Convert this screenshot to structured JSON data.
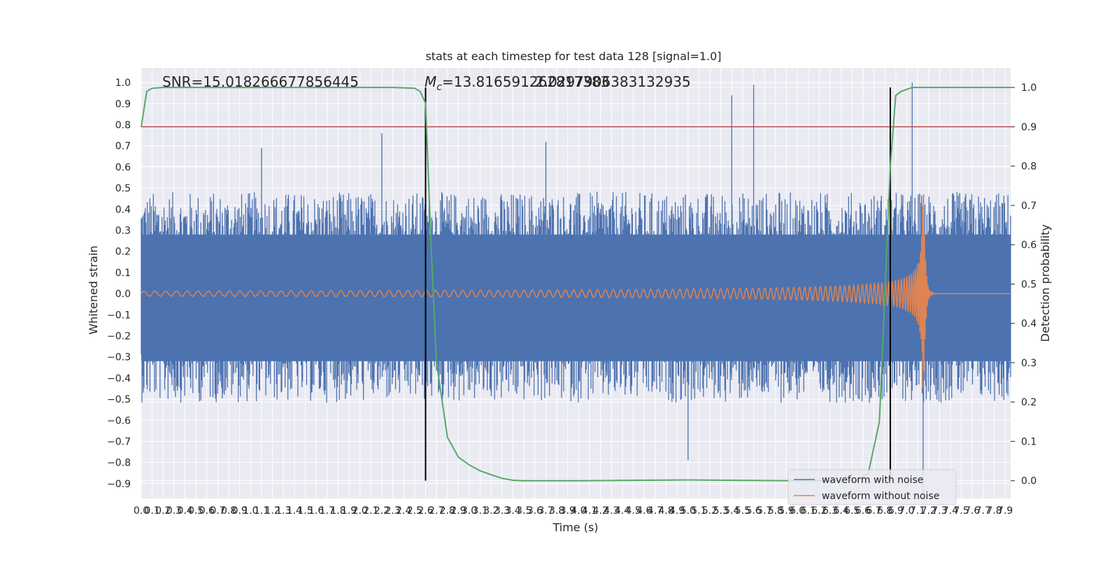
{
  "chart_data": {
    "type": "line",
    "title": "stats at each timestep for test data 128 [signal=1.0]",
    "xlabel": "Time (s)",
    "ylabel": "Whitened strain",
    "y2label": "Detection probability",
    "xlim": [
      0.0,
      7.95
    ],
    "ylim": [
      -0.97,
      1.07
    ],
    "y2lim": [
      -0.045,
      1.05
    ],
    "x_ticks": [
      0.0,
      0.1,
      0.2,
      0.3,
      0.4,
      0.5,
      0.6,
      0.7,
      0.8,
      0.9,
      1.0,
      1.1,
      1.2,
      1.3,
      1.4,
      1.5,
      1.6,
      1.7,
      1.8,
      1.9,
      2.0,
      2.1,
      2.2,
      2.3,
      2.4,
      2.5,
      2.6,
      2.7,
      2.8,
      2.9,
      3.0,
      3.1,
      3.2,
      3.3,
      3.4,
      3.5,
      3.6,
      3.7,
      3.8,
      3.9,
      4.0,
      4.1,
      4.2,
      4.3,
      4.4,
      4.5,
      4.6,
      4.7,
      4.8,
      4.9,
      5.0,
      5.1,
      5.2,
      5.3,
      5.4,
      5.5,
      5.6,
      5.7,
      5.8,
      5.9,
      6.0,
      6.1,
      6.2,
      6.3,
      6.4,
      6.5,
      6.6,
      6.7,
      6.8,
      6.9,
      7.0,
      7.1,
      7.2,
      7.3,
      7.4,
      7.5,
      7.6,
      7.7,
      7.8,
      7.9
    ],
    "y_ticks": [
      "1.0",
      "0.9",
      "0.8",
      "0.7",
      "0.6",
      "0.5",
      "0.4",
      "0.3",
      "0.2",
      "0.1",
      "0.0",
      "−0.1",
      "−0.2",
      "−0.3",
      "−0.4",
      "−0.5",
      "−0.6",
      "−0.7",
      "−0.8",
      "−0.9"
    ],
    "y2_ticks": [
      "1.0",
      "0.9",
      "0.8",
      "0.7",
      "0.6",
      "0.5",
      "0.4",
      "0.3",
      "0.2",
      "0.1",
      "0.0"
    ],
    "annotations": {
      "snr": "SNR=15.018266677856445",
      "mc_symbol": "M",
      "mc_sub": "c",
      "mc_value": "=13.816591262817383",
      "overlap": "2.0297906383132935"
    },
    "threshold": {
      "axis": "right",
      "y": 0.9
    },
    "vertical_markers": [
      2.6,
      6.85
    ],
    "series": [
      {
        "name": "waveform with noise",
        "color": "#4c72b0",
        "axis": "left",
        "envelope_pos": 0.42,
        "envelope_neg": -0.45,
        "spikes": [
          [
            5.4,
            0.94
          ],
          [
            5.6,
            0.99
          ],
          [
            7.05,
            1.0
          ],
          [
            7.15,
            -0.97
          ],
          [
            1.1,
            0.69
          ],
          [
            2.2,
            0.76
          ],
          [
            3.7,
            0.72
          ],
          [
            5.0,
            -0.79
          ]
        ]
      },
      {
        "name": "waveform without noise",
        "color": "#dd8452",
        "axis": "left",
        "peak": [
          7.15,
          0.65
        ],
        "trough": [
          7.15,
          -0.46
        ],
        "merger_time": 7.15
      },
      {
        "name": "detection probability",
        "color": "#55a868",
        "axis": "right",
        "x": [
          0.0,
          0.05,
          0.1,
          0.2,
          0.5,
          1.0,
          1.5,
          2.0,
          2.3,
          2.5,
          2.55,
          2.6,
          2.65,
          2.7,
          2.8,
          2.9,
          3.0,
          3.1,
          3.2,
          3.3,
          3.4,
          3.5,
          4.0,
          5.0,
          6.0,
          6.55,
          6.65,
          6.75,
          6.85,
          6.9,
          6.95,
          7.0,
          7.05,
          7.2,
          7.95
        ],
        "y": [
          0.9,
          0.99,
          0.998,
          1.0,
          1.0,
          1.0,
          1.0,
          1.0,
          1.0,
          0.998,
          0.99,
          0.96,
          0.6,
          0.3,
          0.11,
          0.06,
          0.04,
          0.025,
          0.015,
          0.006,
          0.001,
          0.0,
          0.0,
          0.002,
          0.0,
          0.0,
          0.02,
          0.15,
          0.8,
          0.98,
          0.99,
          0.995,
          1.0,
          1.0,
          1.0
        ]
      }
    ],
    "legend": {
      "placement": "lower-right",
      "entries": [
        "waveform with noise",
        "waveform without noise"
      ]
    },
    "grid": true,
    "colors": {
      "background": "#eaeaf2",
      "grid": "#ffffff",
      "threshold": "#c44e52",
      "marker": "#000000"
    }
  }
}
